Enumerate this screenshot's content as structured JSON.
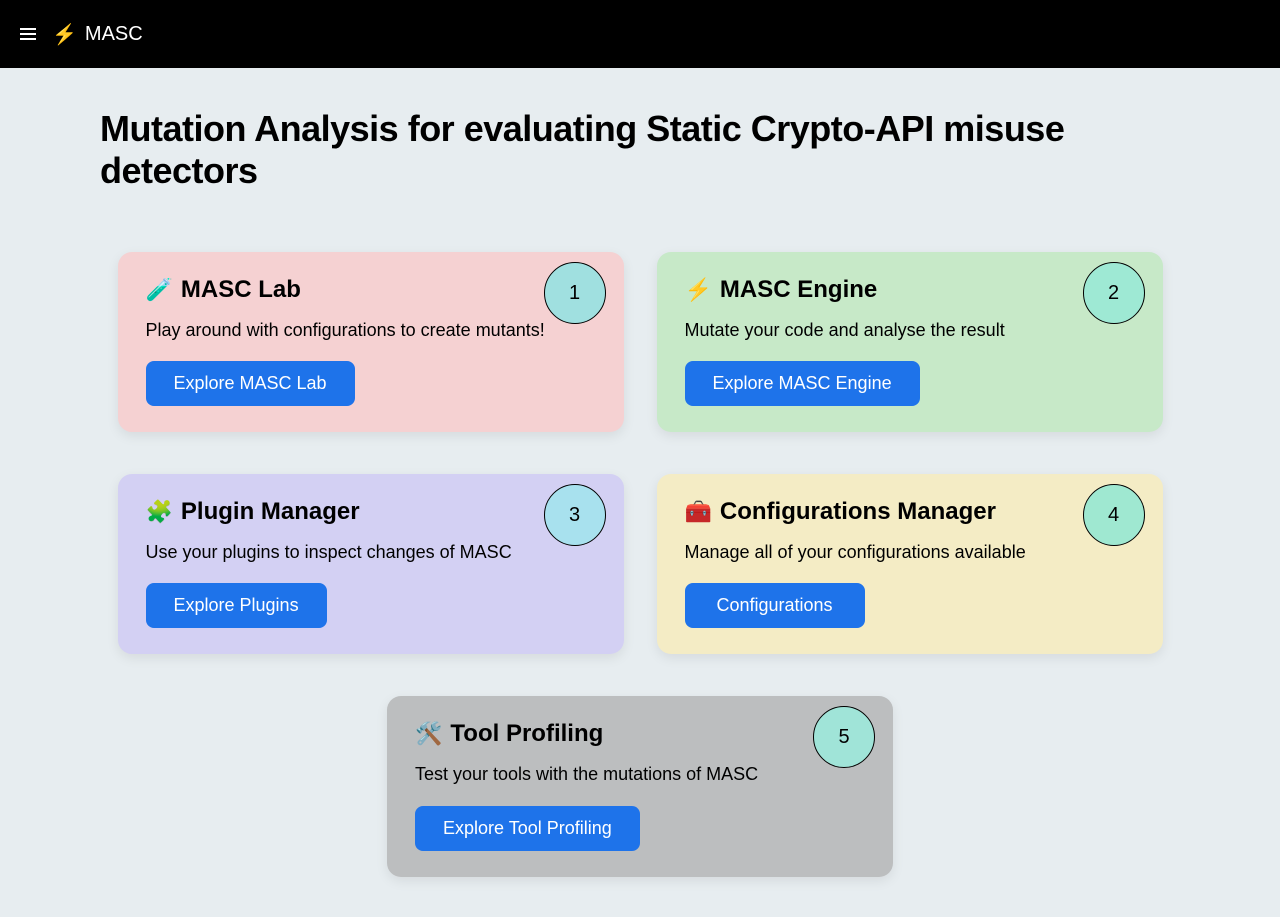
{
  "header": {
    "brand_icon": "⚡",
    "brand_text": "MASC"
  },
  "page_title_html": "<b>M</b>utation <b>A</b>nalysis for evaluating <b>S</b>tatic <b>C</b>rypto-API misuse detectors",
  "page_title": "Mutation Analysis for evaluating Static Crypto-API misuse detectors",
  "cards": [
    {
      "icon": "🧪",
      "title": "MASC Lab",
      "description": "Play around with configurations to create mutants!",
      "button_label": "Explore MASC Lab",
      "number": "1",
      "bg_color": "#f5d1d2",
      "badge_bg": "#a0e0e0"
    },
    {
      "icon": "⚡",
      "title": "MASC Engine",
      "description": "Mutate your code and analyse the result",
      "button_label": "Explore MASC Engine",
      "number": "2",
      "bg_color": "#c7e9c8",
      "badge_bg": "#9ee9d4"
    },
    {
      "icon": "🧩",
      "title": "Plugin Manager",
      "description": "Use your plugins to inspect changes of MASC",
      "button_label": "Explore Plugins",
      "number": "3",
      "bg_color": "#d3d0f3",
      "badge_bg": "#a8e1ee"
    },
    {
      "icon": "🧰",
      "title": "Configurations Manager",
      "description": "Manage all of your configurations available",
      "button_label": "Configurations",
      "number": "4",
      "bg_color": "#f4ecc5",
      "badge_bg": "#9fe8d1"
    },
    {
      "icon": "🛠️",
      "title": "Tool Profiling",
      "description": "Test your tools with the mutations of MASC",
      "button_label": "Explore Tool Profiling",
      "number": "5",
      "bg_color": "#bcbebf",
      "badge_bg": "#a0e4d8"
    }
  ],
  "colors": {
    "header_bg": "#000000",
    "body_bg": "#e7edf0",
    "button_bg": "#1e73ea",
    "button_text": "#ffffff"
  }
}
